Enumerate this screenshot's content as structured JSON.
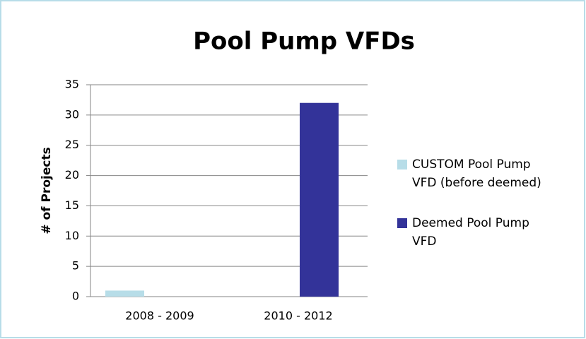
{
  "chart_data": {
    "type": "bar",
    "title": "Pool Pump VFDs",
    "y_label": "# of Projects",
    "categories": [
      "2008 - 2009",
      "2010 - 2012"
    ],
    "series": [
      {
        "name": "CUSTOM Pool Pump VFD (before deemed)",
        "color": "#b7dde8",
        "values": [
          1,
          0
        ]
      },
      {
        "name": "Deemed Pool Pump VFD",
        "color": "#333399",
        "values": [
          0,
          32
        ]
      }
    ],
    "ylim": [
      0,
      35
    ],
    "yticks": [
      0,
      5,
      10,
      15,
      20,
      25,
      30,
      35
    ],
    "grid": true,
    "legend": "right"
  }
}
